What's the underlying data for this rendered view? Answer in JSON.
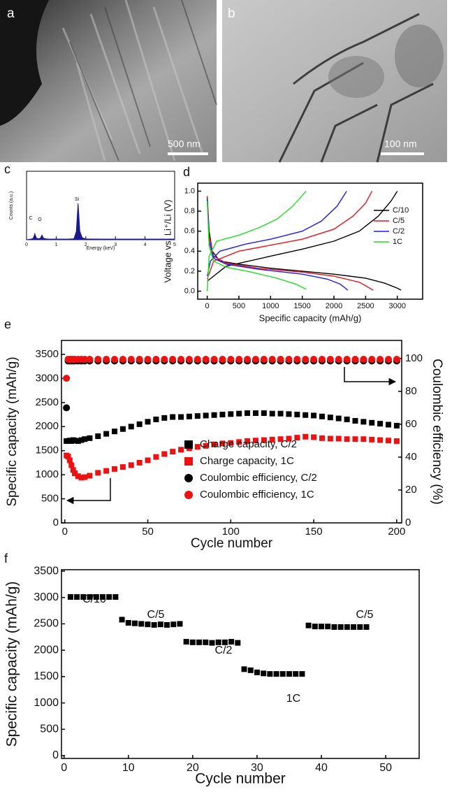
{
  "panels": [
    {
      "label": "a",
      "scale_bar": "500 nm"
    },
    {
      "label": "b",
      "scale_bar": "100 nm"
    }
  ],
  "chart_data": [
    {
      "type": "area",
      "panel": "c",
      "xlabel": "Energy (keV)",
      "ylabel": "Counts (a.u.)",
      "color": "#1a1a8c",
      "x": [
        0,
        0.15,
        0.22,
        0.26,
        0.28,
        0.3,
        0.34,
        0.4,
        0.46,
        0.5,
        0.52,
        0.54,
        0.58,
        0.7,
        1.0,
        1.4,
        1.6,
        1.68,
        1.72,
        1.74,
        1.76,
        1.8,
        1.88,
        2.0,
        2.5,
        3,
        3.5,
        4,
        4.5,
        5
      ],
      "values": [
        0,
        1,
        2,
        6,
        9,
        6,
        2,
        1.5,
        2,
        5,
        7,
        5,
        2,
        1.2,
        1,
        1,
        1.5,
        12,
        40,
        53,
        40,
        12,
        3,
        1.2,
        1,
        1,
        1,
        1,
        1,
        1
      ],
      "xlim": [
        0,
        5
      ],
      "xticks": [
        0,
        1,
        2,
        3,
        4,
        5
      ],
      "ylim": [
        0,
        100
      ],
      "annotations": [
        "C",
        "O",
        "Si"
      ]
    },
    {
      "type": "line",
      "panel": "d",
      "xlabel": "Specific capacity (mAh/g)",
      "ylabel": "Voltage vs. Li⁺/Li (V)",
      "xlim": [
        -150,
        3400
      ],
      "xticks": [
        0,
        500,
        1000,
        1500,
        2000,
        2500,
        3000
      ],
      "ylim": [
        -0.08,
        1.08
      ],
      "yticks": [
        {
          "value": 0,
          "label": "0.0"
        },
        0.2,
        0.4,
        0.6,
        0.8,
        {
          "value": 1,
          "label": "1.0"
        }
      ],
      "legend": "right",
      "series": [
        {
          "name": "C/10",
          "color": "#000000",
          "x": [
            0,
            30,
            80,
            200,
            500,
            1000,
            1500,
            2000,
            2500,
            2800,
            3000,
            3060,
            null,
            0,
            300,
            1000,
            1500,
            2000,
            2400,
            2700,
            2900,
            3000
          ],
          "values": [
            0.95,
            0.6,
            0.4,
            0.3,
            0.27,
            0.23,
            0.2,
            0.17,
            0.13,
            0.08,
            0.03,
            0.01,
            null,
            0.1,
            0.25,
            0.35,
            0.42,
            0.5,
            0.6,
            0.75,
            0.9,
            1.0
          ]
        },
        {
          "name": "C/5",
          "color": "#e8141b",
          "x": [
            0,
            30,
            100,
            300,
            800,
            1500,
            2000,
            2400,
            2620,
            null,
            0,
            100,
            500,
            1000,
            1500,
            2000,
            2300,
            2500,
            2600
          ],
          "values": [
            0.95,
            0.55,
            0.35,
            0.28,
            0.23,
            0.19,
            0.15,
            0.09,
            0.01,
            null,
            0.12,
            0.3,
            0.4,
            0.46,
            0.52,
            0.62,
            0.75,
            0.88,
            1.0
          ]
        },
        {
          "name": "C/2",
          "color": "#1a1aff",
          "x": [
            0,
            30,
            100,
            300,
            800,
            1500,
            1900,
            2100,
            2220,
            null,
            0,
            50,
            200,
            600,
            1000,
            1500,
            1800,
            2050,
            2200
          ],
          "values": [
            0.93,
            0.5,
            0.33,
            0.27,
            0.22,
            0.17,
            0.12,
            0.07,
            0.01,
            null,
            0.15,
            0.3,
            0.4,
            0.47,
            0.52,
            0.6,
            0.7,
            0.85,
            1.0
          ]
        },
        {
          "name": "1C",
          "color": "#22dd22",
          "x": [
            0,
            30,
            100,
            300,
            700,
            1100,
            1400,
            1560,
            null,
            0,
            30,
            150,
            500,
            800,
            1100,
            1350,
            1560
          ],
          "values": [
            0.9,
            0.45,
            0.3,
            0.24,
            0.19,
            0.13,
            0.07,
            0.02,
            null,
            0.0,
            0.35,
            0.5,
            0.56,
            0.63,
            0.72,
            0.85,
            1.0
          ]
        }
      ]
    },
    {
      "type": "scatter",
      "panel": "e",
      "xlabel": "Cycle number",
      "ylabel": "Specific capacity (mAh/g)",
      "y2label": "Coulombic efficiency (%)",
      "xlim": [
        -2,
        203
      ],
      "xticks": [
        0,
        50,
        100,
        150,
        200
      ],
      "ylim": [
        0,
        3790
      ],
      "yticks": [
        0,
        500,
        1000,
        1500,
        2000,
        2500,
        3000,
        3500
      ],
      "y2lim": [
        0,
        111
      ],
      "y2ticks": [
        0,
        20,
        40,
        60,
        80,
        100
      ],
      "legend": "lower right",
      "x": [
        1,
        2,
        3,
        4,
        5,
        6,
        8,
        10,
        12,
        15,
        20,
        25,
        30,
        35,
        40,
        45,
        50,
        55,
        60,
        65,
        70,
        75,
        80,
        85,
        90,
        95,
        100,
        105,
        110,
        115,
        120,
        125,
        130,
        135,
        140,
        145,
        150,
        155,
        160,
        165,
        170,
        175,
        180,
        185,
        190,
        195,
        200
      ],
      "series": [
        {
          "name": "Charge capacity, C/2",
          "color": "#000000",
          "marker": "square",
          "values": [
            1700,
            1700,
            1710,
            1700,
            1720,
            1710,
            1700,
            1720,
            1740,
            1760,
            1800,
            1850,
            1900,
            1950,
            2000,
            2050,
            2100,
            2150,
            2180,
            2200,
            2200,
            2210,
            2220,
            2230,
            2240,
            2250,
            2260,
            2270,
            2280,
            2280,
            2280,
            2270,
            2270,
            2260,
            2250,
            2240,
            2230,
            2210,
            2190,
            2170,
            2150,
            2120,
            2100,
            2080,
            2060,
            2040,
            2020
          ]
        },
        {
          "name": "Charge capacity, 1C",
          "color": "#ee1111",
          "marker": "square",
          "values": [
            1400,
            1380,
            1300,
            1200,
            1100,
            1030,
            970,
            940,
            950,
            980,
            1040,
            1080,
            1120,
            1160,
            1200,
            1250,
            1300,
            1370,
            1430,
            1480,
            1520,
            1550,
            1580,
            1600,
            1630,
            1650,
            1660,
            1680,
            1700,
            1710,
            1720,
            1730,
            1740,
            1750,
            1770,
            1790,
            1780,
            1760,
            1750,
            1750,
            1740,
            1740,
            1740,
            1730,
            1720,
            1710,
            1700
          ]
        },
        {
          "name": " Coulombic efficiency, C/2",
          "color": "#000000",
          "marker": "circle",
          "axis": "y2",
          "values": [
            70,
            98.5,
            98.5,
            98.5,
            98.5,
            98.5,
            98.5,
            98.5,
            98.5,
            98.5,
            98.5,
            98.5,
            98.5,
            98.5,
            98.5,
            98.5,
            98.5,
            98.5,
            98.5,
            98.5,
            98.5,
            98.5,
            98.5,
            98.5,
            98.5,
            98.5,
            98.5,
            98.5,
            98.5,
            98.5,
            98.5,
            98.5,
            98.5,
            98.5,
            98.5,
            98.5,
            98.5,
            98.5,
            98.5,
            98.5,
            98.5,
            98.5,
            98.5,
            98.5,
            98.5,
            98.5,
            98.5
          ]
        },
        {
          "name": "Coulombic efficiency, 1C",
          "color": "#ee1111",
          "marker": "circle",
          "axis": "y2",
          "values": [
            88,
            99.5,
            99.5,
            99.5,
            99.5,
            99.5,
            99.5,
            99.5,
            99.5,
            99.5,
            99.5,
            99.5,
            99.5,
            99.5,
            99.5,
            99.5,
            99.5,
            99.5,
            99.5,
            99.5,
            99.5,
            99.5,
            99.5,
            99.5,
            99.5,
            99.5,
            99.5,
            99.5,
            99.5,
            99.5,
            99.5,
            99.5,
            99.5,
            99.5,
            99.5,
            99.5,
            99.5,
            99.5,
            99.5,
            99.5,
            99.5,
            99.5,
            99.5,
            99.5,
            99.5,
            99.5,
            99.5
          ]
        }
      ]
    },
    {
      "type": "scatter",
      "panel": "f",
      "xlabel": "Cycle number",
      "ylabel": "Specific capacity (mAh/g)",
      "xlim": [
        -0.4,
        55.2
      ],
      "xticks": [
        0,
        10,
        20,
        30,
        40,
        50
      ],
      "ylim": [
        -53,
        3527
      ],
      "yticks": [
        0,
        500,
        1000,
        1500,
        2000,
        2500,
        3000,
        3500
      ],
      "color": "#000000",
      "marker": "square",
      "x": [
        1,
        2,
        3,
        4,
        5,
        6,
        7,
        8,
        9,
        10,
        11,
        12,
        13,
        14,
        15,
        16,
        17,
        18,
        19,
        20,
        21,
        22,
        23,
        24,
        25,
        26,
        27,
        28,
        29,
        30,
        31,
        32,
        33,
        34,
        35,
        36,
        37,
        38,
        39,
        40,
        41,
        42,
        43,
        44,
        45,
        46,
        47
      ],
      "values": [
        3010,
        3010,
        3010,
        3010,
        3010,
        3010,
        3010,
        3010,
        2580,
        2520,
        2510,
        2500,
        2490,
        2480,
        2490,
        2480,
        2490,
        2500,
        2160,
        2150,
        2150,
        2150,
        2140,
        2150,
        2150,
        2160,
        2140,
        1640,
        1620,
        1580,
        1560,
        1550,
        1550,
        1550,
        1550,
        1550,
        1550,
        2470,
        2450,
        2450,
        2450,
        2440,
        2440,
        2440,
        2440,
        2440,
        2440
      ],
      "annotations": [
        "C/10",
        "C/5",
        "C/2",
        "1C",
        "C/5"
      ]
    }
  ]
}
